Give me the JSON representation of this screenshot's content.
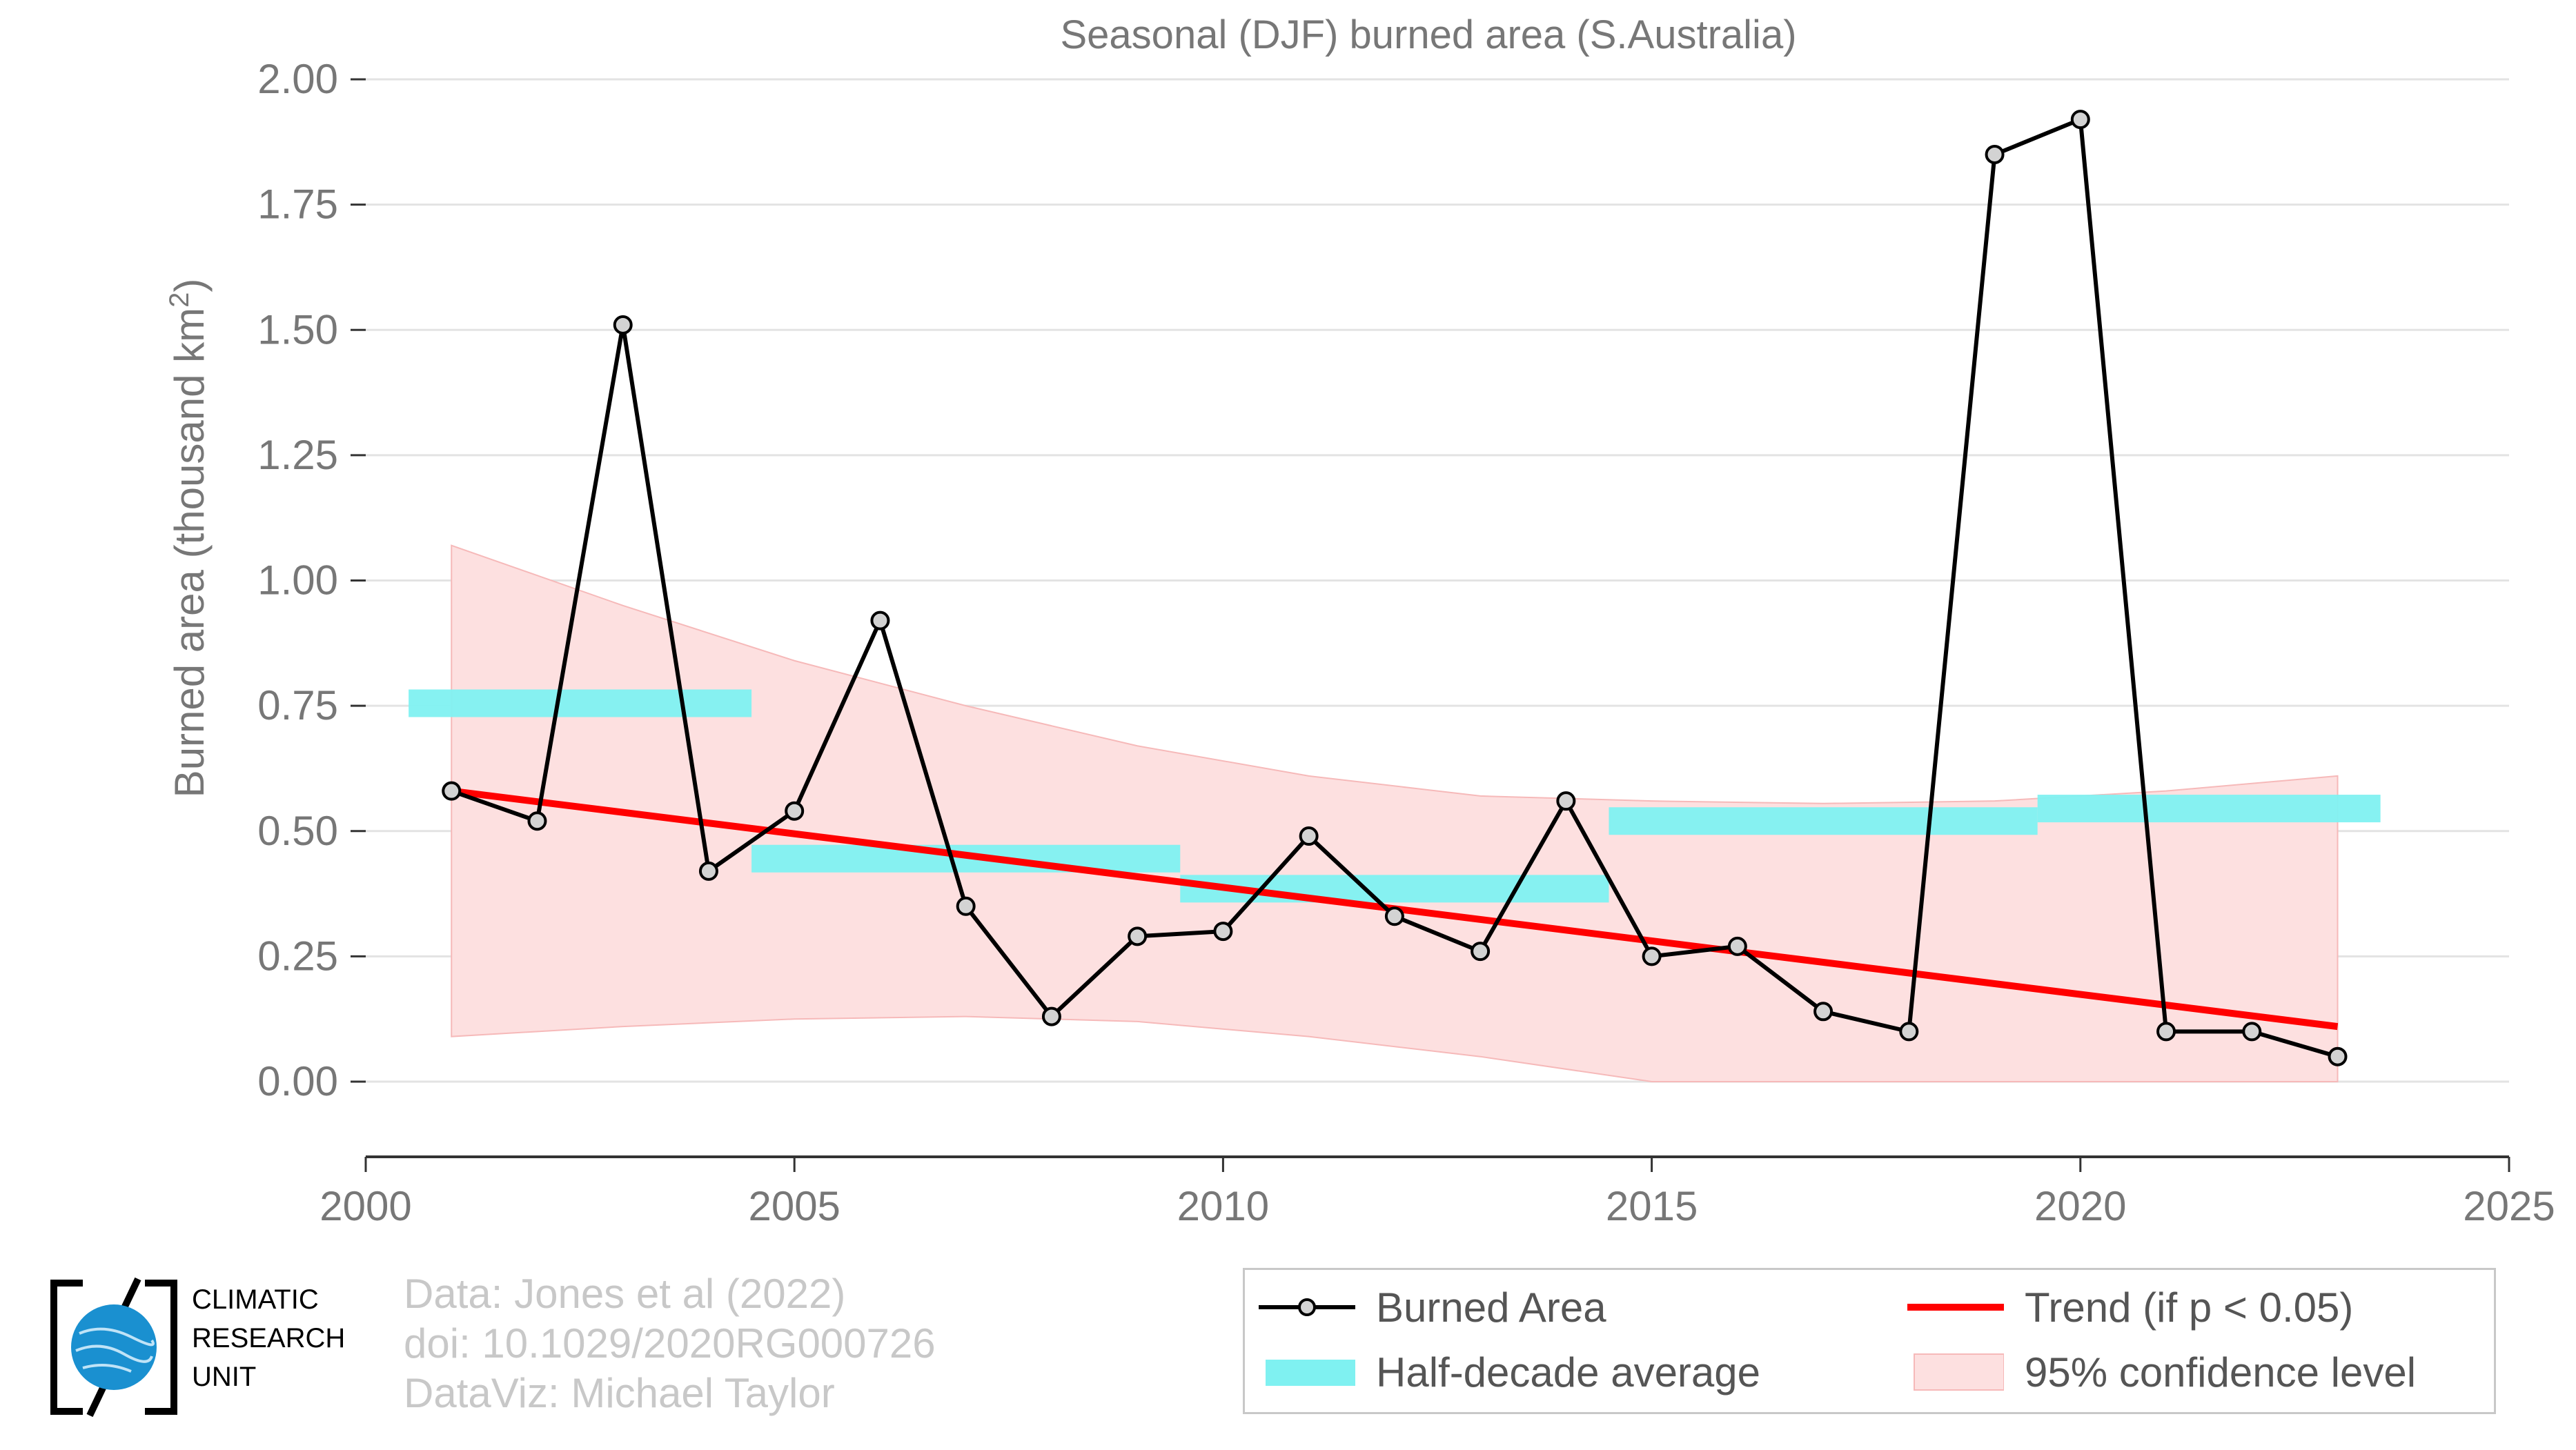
{
  "colors": {
    "series": "#000000",
    "marker_fill": "#d3d3d3",
    "trend": "#ff0000",
    "half_decade": "#7ff1f1",
    "confidence": "#fde0e0",
    "confidence_edge": "#f6b9b9",
    "grid": "#e3e3e3",
    "text": "#777777",
    "credits": "#c8c8c8",
    "logo_blue": "#1a90d0"
  },
  "chart_data": {
    "type": "line",
    "title": "Seasonal (DJF) burned area (S.Australia)",
    "ylabel": "Burned area (thousand km",
    "ylabel_sup": "2",
    "ylabel_end": ")",
    "xlabel": "",
    "xlim": [
      2000,
      2025
    ],
    "ylim": [
      -0.15,
      2.0
    ],
    "xticks": [
      2000,
      2005,
      2010,
      2015,
      2020,
      2025
    ],
    "yticks": [
      0.0,
      0.25,
      0.5,
      0.75,
      1.0,
      1.25,
      1.5,
      1.75,
      2.0
    ],
    "ytick_labels": [
      "0.00",
      "0.25",
      "0.50",
      "0.75",
      "1.00",
      "1.25",
      "1.50",
      "1.75",
      "2.00"
    ],
    "grid": "horizontal",
    "legend_position": "bottom-right",
    "series": [
      {
        "name": "Burned Area",
        "x": [
          2001,
          2002,
          2003,
          2004,
          2005,
          2006,
          2007,
          2008,
          2009,
          2010,
          2011,
          2012,
          2013,
          2014,
          2015,
          2016,
          2017,
          2018,
          2019,
          2020,
          2021,
          2022,
          2023
        ],
        "y": [
          0.58,
          0.52,
          1.51,
          0.42,
          0.54,
          0.92,
          0.35,
          0.13,
          0.29,
          0.3,
          0.49,
          0.33,
          0.26,
          0.56,
          0.25,
          0.27,
          0.14,
          0.1,
          1.85,
          1.92,
          0.1,
          0.1,
          0.05
        ]
      },
      {
        "name": "Trend (if p < 0.05)",
        "x": [
          2001,
          2023
        ],
        "y": [
          0.58,
          0.11
        ]
      }
    ],
    "half_decade": {
      "name": "Half-decade average",
      "segments": [
        {
          "x0": 2000.5,
          "x1": 2004.5,
          "y": 0.755
        },
        {
          "x0": 2004.5,
          "x1": 2009.5,
          "y": 0.445
        },
        {
          "x0": 2009.5,
          "x1": 2014.5,
          "y": 0.385
        },
        {
          "x0": 2014.5,
          "x1": 2019.5,
          "y": 0.52
        },
        {
          "x0": 2019.5,
          "x1": 2023.5,
          "y": 0.545
        }
      ]
    },
    "confidence": {
      "name": "95% confidence level",
      "x": [
        2001,
        2003,
        2005,
        2007,
        2009,
        2011,
        2013,
        2015,
        2017,
        2019,
        2021,
        2023
      ],
      "lower": [
        0.09,
        0.11,
        0.125,
        0.13,
        0.12,
        0.09,
        0.05,
        0.0,
        0.0,
        0.0,
        0.0,
        0.0
      ],
      "upper": [
        1.07,
        0.95,
        0.84,
        0.75,
        0.67,
        0.61,
        0.57,
        0.56,
        0.555,
        0.56,
        0.58,
        0.61
      ]
    }
  },
  "credits": {
    "line1": "Data: Jones et al (2022)",
    "line2": "doi: 10.1029/2020RG000726",
    "line3": "DataViz: Michael Taylor"
  },
  "logo": {
    "line1": "CLIMATIC",
    "line2": "RESEARCH",
    "line3": "UNIT"
  },
  "legend": {
    "burned_area": "Burned Area",
    "trend": "Trend (if p < 0.05)",
    "half_decade": "Half-decade average",
    "confidence": "95% confidence level"
  }
}
